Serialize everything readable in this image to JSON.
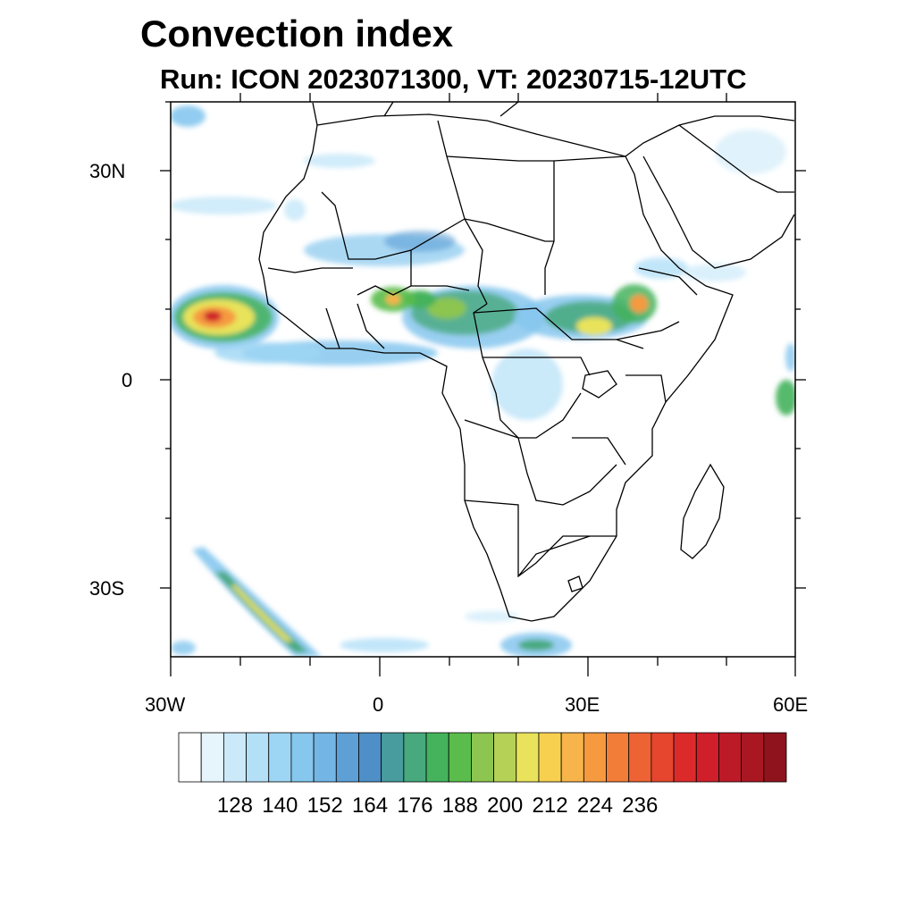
{
  "title": "Convection index",
  "subtitle": "Run: ICON 2023071300,  VT: 20230715-12UTC",
  "axes": {
    "lat_labels": [
      "30N",
      "0",
      "30S"
    ],
    "lon_labels": [
      "30W",
      "0",
      "30E",
      "60E"
    ],
    "lon_range": [
      -30,
      60
    ],
    "lat_range": [
      -40,
      40
    ]
  },
  "colorbar": {
    "colors": [
      "#ffffff",
      "#e6f4fc",
      "#cbe9f9",
      "#b3e0f7",
      "#9dd6f4",
      "#86c7ee",
      "#73b6e6",
      "#5e9fd6",
      "#4d8fc6",
      "#489c9e",
      "#47a97d",
      "#44b35c",
      "#5abd4b",
      "#8cc54f",
      "#b5d156",
      "#e8e35a",
      "#f8d050",
      "#f6b44a",
      "#f59a3f",
      "#f27d38",
      "#ee6334",
      "#e6452e",
      "#dc2a2b",
      "#cf1f2a",
      "#bd1a27",
      "#a81722",
      "#8f131d"
    ],
    "labels": [
      "128",
      "140",
      "152",
      "164",
      "176",
      "188",
      "200",
      "212",
      "224",
      "236"
    ]
  }
}
